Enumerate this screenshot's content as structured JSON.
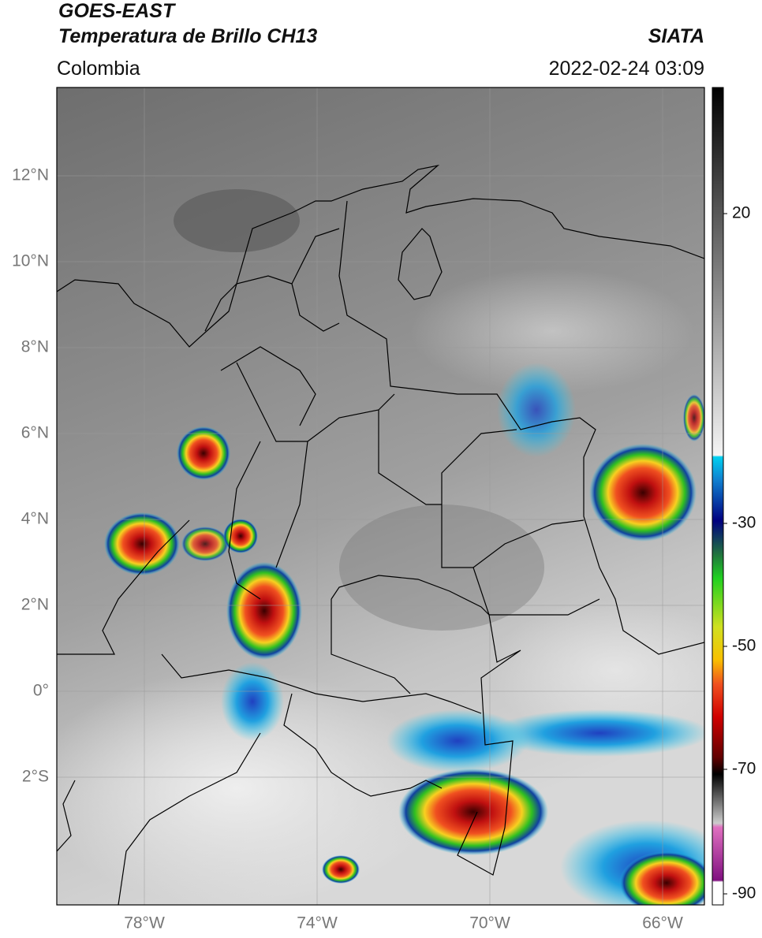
{
  "header": {
    "title": "GOES-EAST",
    "subtitle": "Temperatura de Brillo CH13",
    "source": "SIATA",
    "region": "Colombia",
    "datetime": "2022-02-24 03:09"
  },
  "map": {
    "lat_labels": [
      "12°N",
      "10°N",
      "8°N",
      "6°N",
      "4°N",
      "2°N",
      "0°",
      "2°S"
    ],
    "lon_labels": [
      "78°W",
      "74°W",
      "70°W",
      "66°W"
    ]
  },
  "colorbar": {
    "ticks": [
      20,
      -30,
      -50,
      -70,
      -90
    ]
  }
}
